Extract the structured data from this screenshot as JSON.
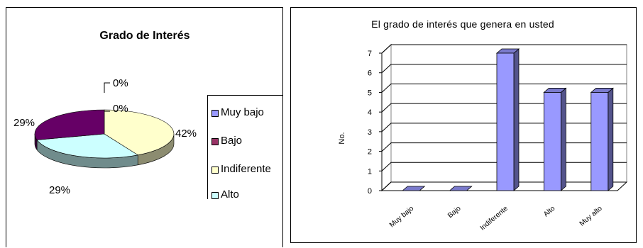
{
  "chart_data": [
    {
      "type": "pie",
      "title": "Grado de Interés",
      "series": [
        {
          "name": "Muy bajo",
          "value": 0,
          "label": "0%",
          "color": "#9999ff"
        },
        {
          "name": "Bajo",
          "value": 0,
          "label": "0%",
          "color": "#993366"
        },
        {
          "name": "Indiferente",
          "value": 42,
          "label": "42%",
          "color": "#ffffcc"
        },
        {
          "name": "Alto",
          "value": 29,
          "label": "29%",
          "color": "#ccffff"
        },
        {
          "name": "Muy alto",
          "value": 29,
          "label": "29%",
          "color": "#660066"
        }
      ],
      "legend": {
        "placement": "right",
        "items": [
          {
            "label": "Muy bajo",
            "color": "#9999ff"
          },
          {
            "label": "Bajo",
            "color": "#993366"
          },
          {
            "label": "Indiferente",
            "color": "#ffffcc"
          },
          {
            "label": "Alto",
            "color": "#ccffff"
          }
        ]
      },
      "style": "3d"
    },
    {
      "type": "bar",
      "title": "El grado de interés que genera en usted",
      "ylabel": "No.",
      "xlabel": "",
      "categories": [
        "Muy bajo",
        "Bajo",
        "Indiferente",
        "Alto",
        "Muy alto"
      ],
      "values": [
        0,
        0,
        7,
        5,
        5
      ],
      "yticks": [
        "0",
        "1",
        "2",
        "3",
        "4",
        "5",
        "6",
        "7"
      ],
      "ylim": [
        0,
        7
      ],
      "grid": true,
      "bar_color": "#9999ff",
      "style": "3d"
    }
  ]
}
